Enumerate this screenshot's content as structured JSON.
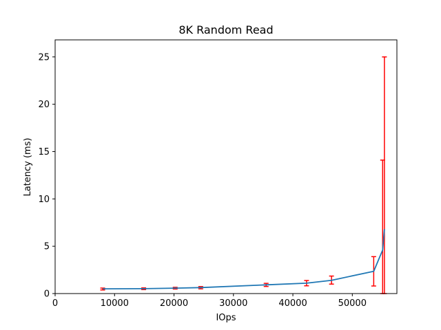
{
  "chart_data": {
    "type": "line",
    "title": "8K  Random Read",
    "xlabel": "IOps",
    "ylabel": "Latency (ms)",
    "xlim": [
      0,
      57500
    ],
    "ylim": [
      0,
      26.8
    ],
    "xticks": [
      0,
      10000,
      20000,
      30000,
      40000,
      50000
    ],
    "xtick_labels": [
      "0",
      "10000",
      "20000",
      "30000",
      "40000",
      "50000"
    ],
    "yticks": [
      0,
      5,
      10,
      15,
      20,
      25
    ],
    "ytick_labels": [
      "0",
      "5",
      "10",
      "15",
      "20",
      "25"
    ],
    "grid": false,
    "legend": "none",
    "line_color": "#1f77b4",
    "errorbar_color": "#ff0000",
    "series": [
      {
        "x": [
          8000,
          14900,
          20200,
          24500,
          35500,
          42300,
          46500,
          53600,
          55100,
          55400
        ],
        "y": [
          0.5,
          0.52,
          0.57,
          0.63,
          0.92,
          1.1,
          1.4,
          2.35,
          4.6,
          6.8
        ],
        "yerr_low": [
          0.38,
          0.42,
          0.48,
          0.5,
          0.75,
          0.82,
          1.0,
          0.8,
          0.0,
          0.0
        ],
        "yerr_high": [
          0.58,
          0.6,
          0.66,
          0.74,
          1.08,
          1.38,
          1.85,
          3.9,
          14.1,
          25.0
        ]
      }
    ]
  }
}
